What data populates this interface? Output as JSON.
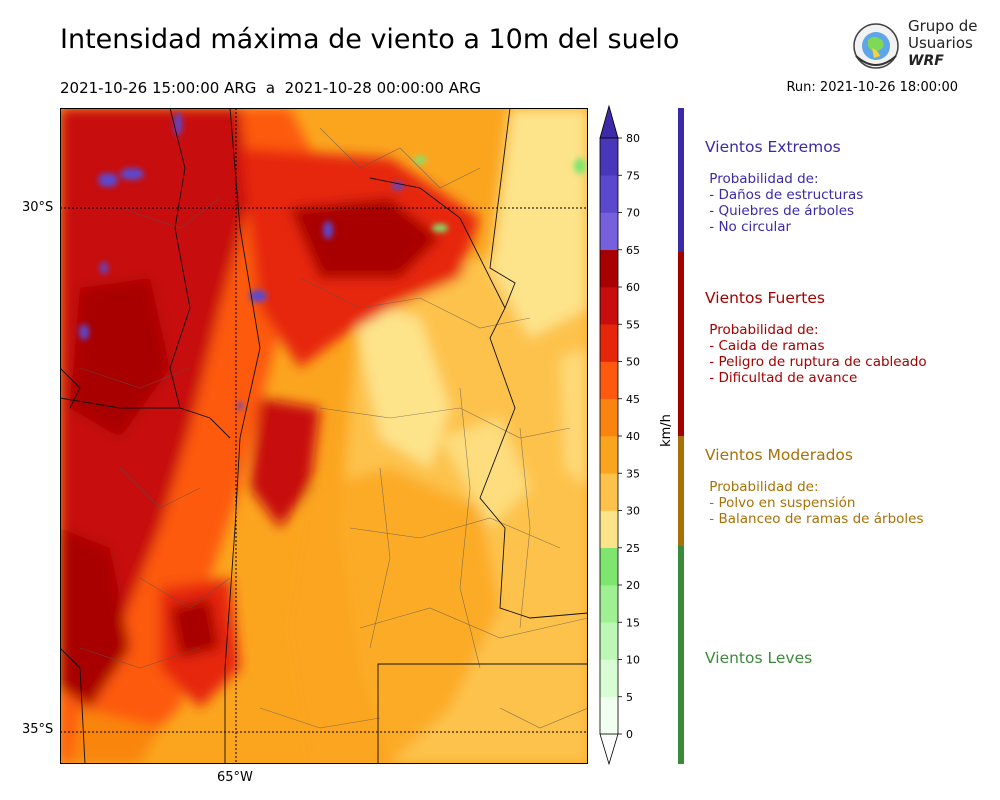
{
  "header": {
    "title": "Intensidad máxima de viento a 10m del suelo",
    "subtitle": "2021-10-26 15:00:00 ARG  a  2021-10-28 00:00:00 ARG",
    "run": "Run: 2021-10-26 18:00:00"
  },
  "logo": {
    "line1": "Grupo de",
    "line2": "Usuarios",
    "line3": "WRF"
  },
  "map": {
    "lat_labels": [
      "30°S",
      "35°S"
    ],
    "lon_labels": [
      "65°W"
    ]
  },
  "colorbar": {
    "unit": "km/h",
    "ticks": [
      "0",
      "5",
      "10",
      "15",
      "20",
      "25",
      "30",
      "35",
      "40",
      "45",
      "50",
      "55",
      "60",
      "65",
      "70",
      "75",
      "80"
    ],
    "colors": [
      "#f0fff0",
      "#d8fcd4",
      "#bdf7b6",
      "#9ef092",
      "#7ee56e",
      "#fde38a",
      "#fdc24c",
      "#fba51f",
      "#f98510",
      "#fd5a0f",
      "#e6260a",
      "#c70d0d",
      "#a80000",
      "#7660dc",
      "#5c48cf",
      "#4a36b8"
    ],
    "top_color": "#3d2aa8",
    "bottom_color": "#ffffff"
  },
  "categories": [
    {
      "name": "Vientos Extremos",
      "color": "#3a2aa8",
      "lines": [
        " Probabilidad de:",
        " - Daños de estructuras",
        " - Quiebres de árboles",
        " - No circular"
      ]
    },
    {
      "name": "Vientos Fuertes",
      "color": "#a30000",
      "lines": [
        " Probabilidad de:",
        " - Caida de ramas",
        " - Peligro de ruptura de cableado",
        " - Dificultad de avance"
      ]
    },
    {
      "name": "Vientos Moderados",
      "color": "#a87108",
      "lines": [
        " Probabilidad de:",
        " - Polvo en suspensión",
        " - Balanceo de ramas de árboles"
      ]
    },
    {
      "name": "Vientos Leves",
      "color": "#3b8a3b",
      "lines": []
    }
  ]
}
